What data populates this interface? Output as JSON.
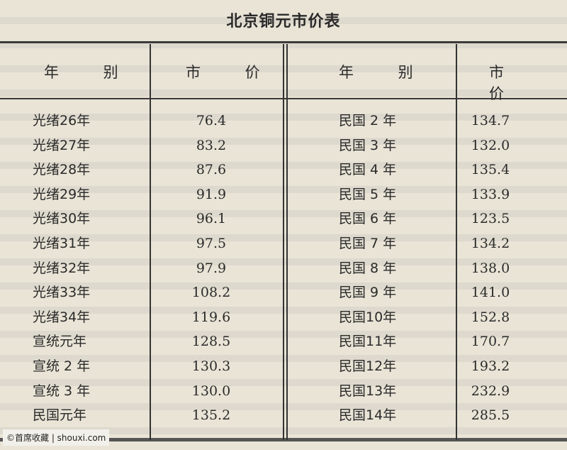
{
  "title": "北京铜元市价表",
  "headers": {
    "year": "年 别",
    "price": "市 价"
  },
  "left_rows": [
    {
      "year": "光绪26年",
      "price": "76.4"
    },
    {
      "year": "光绪27年",
      "price": "83.2"
    },
    {
      "year": "光绪28年",
      "price": "87.6"
    },
    {
      "year": "光绪29年",
      "price": "91.9"
    },
    {
      "year": "光绪30年",
      "price": "96.1"
    },
    {
      "year": "光绪31年",
      "price": "97.5"
    },
    {
      "year": "光绪32年",
      "price": "97.9"
    },
    {
      "year": "光绪33年",
      "price": "108.2"
    },
    {
      "year": "光绪34年",
      "price": "119.6"
    },
    {
      "year": "宣统元年",
      "price": "128.5"
    },
    {
      "year": "宣统 2 年",
      "price": "130.3"
    },
    {
      "year": "宣统 3 年",
      "price": "130.0"
    },
    {
      "year": "民国元年",
      "price": "135.2"
    }
  ],
  "right_rows": [
    {
      "year": "民国 2 年",
      "price": "134.7"
    },
    {
      "year": "民国 3 年",
      "price": "132.0"
    },
    {
      "year": "民国 4 年",
      "price": "135.4"
    },
    {
      "year": "民国 5 年",
      "price": "133.9"
    },
    {
      "year": "民国 6 年",
      "price": "123.5"
    },
    {
      "year": "民国 7 年",
      "price": "134.2"
    },
    {
      "year": "民国 8 年",
      "price": "138.0"
    },
    {
      "year": "民国 9 年",
      "price": "141.0"
    },
    {
      "year": "民国10年",
      "price": "152.8"
    },
    {
      "year": "民国11年",
      "price": "170.7"
    },
    {
      "year": "民国12年",
      "price": "193.2"
    },
    {
      "year": "民国13年",
      "price": "232.9"
    },
    {
      "year": "民国14年",
      "price": "285.5"
    }
  ],
  "watermark": "©首席收藏 | shouxi.com"
}
